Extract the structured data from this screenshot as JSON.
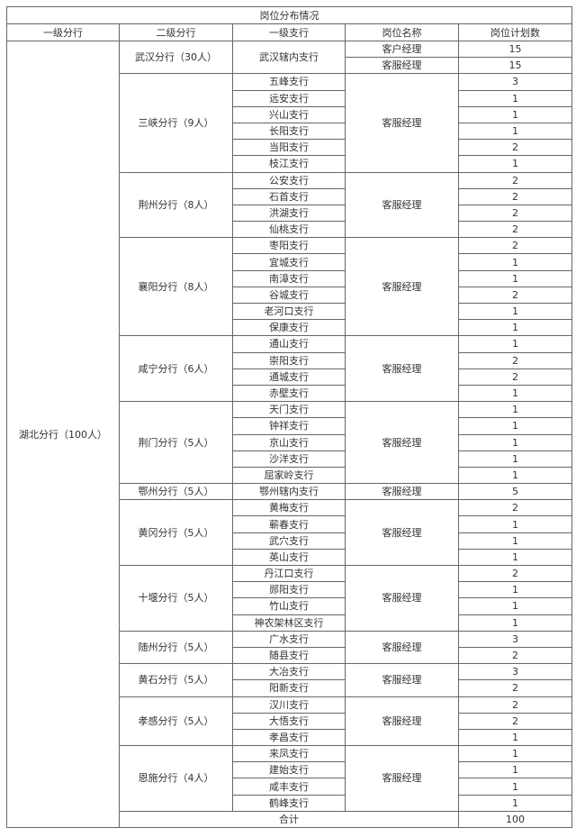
{
  "title": "岗位分布情况",
  "headers": [
    "一级分行",
    "二级分行",
    "一级支行",
    "岗位名称",
    "岗位计划数"
  ],
  "level1": "湖北分行（100人）",
  "groups": [
    {
      "level2": "武汉分行（30人）",
      "rows": [
        {
          "branch": "武汉辖内支行",
          "position": "客户经理",
          "count": "15"
        },
        {
          "branch": "武汉辖内支行",
          "position": "客服经理",
          "count": "15"
        }
      ]
    },
    {
      "level2": "三峡分行（9人）",
      "position": "客服经理",
      "rows": [
        {
          "branch": "五峰支行",
          "count": "3"
        },
        {
          "branch": "远安支行",
          "count": "1"
        },
        {
          "branch": "兴山支行",
          "count": "1"
        },
        {
          "branch": "长阳支行",
          "count": "1"
        },
        {
          "branch": "当阳支行",
          "count": "2"
        },
        {
          "branch": "枝江支行",
          "count": "1"
        }
      ]
    },
    {
      "level2": "荆州分行（8人）",
      "position": "客服经理",
      "rows": [
        {
          "branch": "公安支行",
          "count": "2"
        },
        {
          "branch": "石首支行",
          "count": "2"
        },
        {
          "branch": "洪湖支行",
          "count": "2"
        },
        {
          "branch": "仙桃支行",
          "count": "2"
        }
      ]
    },
    {
      "level2": "襄阳分行（8人）",
      "position": "客服经理",
      "rows": [
        {
          "branch": "枣阳支行",
          "count": "2"
        },
        {
          "branch": "宜城支行",
          "count": "1"
        },
        {
          "branch": "南漳支行",
          "count": "1"
        },
        {
          "branch": "谷城支行",
          "count": "2"
        },
        {
          "branch": "老河口支行",
          "count": "1"
        },
        {
          "branch": "保康支行",
          "count": "1"
        }
      ]
    },
    {
      "level2": "咸宁分行（6人）",
      "position": "客服经理",
      "rows": [
        {
          "branch": "通山支行",
          "count": "1"
        },
        {
          "branch": "崇阳支行",
          "count": "2"
        },
        {
          "branch": "通城支行",
          "count": "2"
        },
        {
          "branch": "赤壁支行",
          "count": "1"
        }
      ]
    },
    {
      "level2": "荆门分行（5人）",
      "position": "客服经理",
      "rows": [
        {
          "branch": "天门支行",
          "count": "1"
        },
        {
          "branch": "钟祥支行",
          "count": "1"
        },
        {
          "branch": "京山支行",
          "count": "1"
        },
        {
          "branch": "沙洋支行",
          "count": "1"
        },
        {
          "branch": "屈家岭支行",
          "count": "1"
        }
      ]
    },
    {
      "level2": "鄂州分行（5人）",
      "position": "客服经理",
      "rows": [
        {
          "branch": "鄂州辖内支行",
          "count": "5"
        }
      ]
    },
    {
      "level2": "黄冈分行（5人）",
      "position": "客服经理",
      "rows": [
        {
          "branch": "黄梅支行",
          "count": "2"
        },
        {
          "branch": "蕲春支行",
          "count": "1"
        },
        {
          "branch": "武穴支行",
          "count": "1"
        },
        {
          "branch": "英山支行",
          "count": "1"
        }
      ]
    },
    {
      "level2": "十堰分行（5人）",
      "position": "客服经理",
      "rows": [
        {
          "branch": "丹江口支行",
          "count": "2"
        },
        {
          "branch": "郧阳支行",
          "count": "1"
        },
        {
          "branch": "竹山支行",
          "count": "1"
        },
        {
          "branch": "神农架林区支行",
          "count": "1"
        }
      ]
    },
    {
      "level2": "随州分行（5人）",
      "position": "客服经理",
      "rows": [
        {
          "branch": "广水支行",
          "count": "3"
        },
        {
          "branch": "随县支行",
          "count": "2"
        }
      ]
    },
    {
      "level2": "黄石分行（5人）",
      "position": "客服经理",
      "rows": [
        {
          "branch": "大冶支行",
          "count": "3"
        },
        {
          "branch": "阳新支行",
          "count": "2"
        }
      ]
    },
    {
      "level2": "孝感分行（5人）",
      "position": "客服经理",
      "rows": [
        {
          "branch": "汉川支行",
          "count": "2"
        },
        {
          "branch": "大悟支行",
          "count": "2"
        },
        {
          "branch": "孝昌支行",
          "count": "1"
        }
      ]
    },
    {
      "level2": "恩施分行（4人）",
      "position": "客服经理",
      "rows": [
        {
          "branch": "来凤支行",
          "count": "1"
        },
        {
          "branch": "建始支行",
          "count": "1"
        },
        {
          "branch": "咸丰支行",
          "count": "1"
        },
        {
          "branch": "鹤峰支行",
          "count": "1"
        }
      ]
    }
  ],
  "total": {
    "label": "合计",
    "value": "100"
  }
}
